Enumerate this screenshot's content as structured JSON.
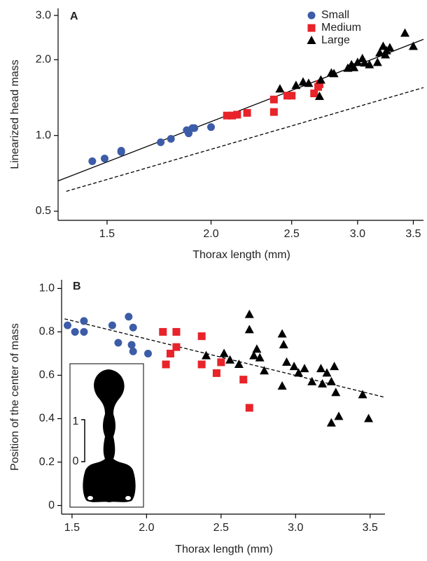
{
  "chart_data": [
    {
      "type": "scatter",
      "panel": "A",
      "xlabel": "Thorax length (mm)",
      "ylabel": "Linearized head mass",
      "xscale": "log",
      "yscale": "log",
      "xlim": [
        1.31,
        3.6
      ],
      "ylim": [
        0.46,
        3.2
      ],
      "xticks": [
        1.5,
        {
          "value": 2,
          "label": "2.0"
        },
        2.5,
        {
          "value": 3,
          "label": "3.0"
        },
        3.5
      ],
      "yticks": [
        0.5,
        {
          "value": 1,
          "label": "1.0"
        },
        {
          "value": 2,
          "label": "2.0"
        },
        {
          "value": 3,
          "label": "3.0"
        }
      ],
      "legend": "upper right",
      "series": [
        {
          "name": "Small",
          "color": "#3d5ca8",
          "marker": "circle",
          "x": [
            1.44,
            1.49,
            1.56,
            1.56,
            1.74,
            1.79,
            1.87,
            1.88,
            1.9,
            1.91,
            2.0
          ],
          "values": [
            0.79,
            0.81,
            0.86,
            0.87,
            0.94,
            0.97,
            1.05,
            1.02,
            1.07,
            1.07,
            1.08
          ]
        },
        {
          "name": "Medium",
          "color": "#e8232a",
          "marker": "square",
          "x": [
            2.09,
            2.12,
            2.15,
            2.21,
            2.38,
            2.38,
            2.47,
            2.5,
            2.66,
            2.69,
            2.7
          ],
          "values": [
            1.2,
            1.2,
            1.21,
            1.23,
            1.39,
            1.24,
            1.44,
            1.44,
            1.47,
            1.56,
            1.6
          ]
        },
        {
          "name": "Large",
          "color": "#000000",
          "marker": "triangle",
          "x": [
            2.42,
            2.53,
            2.58,
            2.62,
            2.7,
            2.71,
            2.79,
            2.81,
            2.92,
            2.95,
            2.97,
            3.0,
            3.04,
            3.06,
            3.1,
            3.17,
            3.19,
            3.22,
            3.24,
            3.25,
            3.28,
            3.42,
            3.5
          ],
          "values": [
            1.53,
            1.58,
            1.63,
            1.61,
            1.43,
            1.66,
            1.77,
            1.76,
            1.85,
            1.91,
            1.86,
            1.95,
            2.02,
            1.94,
            1.91,
            1.95,
            2.13,
            2.26,
            2.09,
            2.17,
            2.23,
            2.55,
            2.26
          ]
        }
      ],
      "lines": [
        {
          "color": "#000000",
          "dashed": false,
          "x": [
            1.31,
            3.6
          ],
          "values": [
            0.66,
            2.41
          ]
        },
        {
          "color": "#000000",
          "dashed": true,
          "x": [
            1.34,
            3.6
          ],
          "values": [
            0.6,
            1.55
          ]
        }
      ]
    },
    {
      "type": "scatter",
      "panel": "B",
      "xlabel": "Thorax length (mm)",
      "ylabel": "Position of the center of mass",
      "xscale": "linear",
      "yscale": "linear",
      "xlim": [
        1.43,
        3.6
      ],
      "ylim": [
        -0.04,
        1.04
      ],
      "xticks": [
        1.5,
        {
          "value": 2,
          "label": "2.0"
        },
        2.5,
        {
          "value": 3,
          "label": "3.0"
        },
        3.5
      ],
      "yticks": [
        0,
        0.2,
        0.4,
        0.6,
        0.8,
        {
          "value": 1,
          "label": "1.0"
        }
      ],
      "series": [
        {
          "color": "#3d5ca8",
          "marker": "circle",
          "x": [
            1.47,
            1.52,
            1.58,
            1.58,
            1.77,
            1.81,
            1.88,
            1.91,
            1.9,
            1.91,
            2.01
          ],
          "values": [
            0.83,
            0.8,
            0.85,
            0.8,
            0.83,
            0.75,
            0.87,
            0.82,
            0.74,
            0.71,
            0.7
          ]
        },
        {
          "color": "#e8232a",
          "marker": "square",
          "x": [
            2.11,
            2.13,
            2.16,
            2.2,
            2.2,
            2.37,
            2.37,
            2.47,
            2.5,
            2.65,
            2.69
          ],
          "values": [
            0.8,
            0.65,
            0.7,
            0.8,
            0.73,
            0.78,
            0.65,
            0.61,
            0.66,
            0.58,
            0.45
          ]
        },
        {
          "color": "#000000",
          "marker": "triangle",
          "x": [
            2.4,
            2.52,
            2.56,
            2.62,
            2.69,
            2.69,
            2.72,
            2.74,
            2.76,
            2.79,
            2.91,
            2.91,
            2.92,
            2.94,
            2.99,
            3.02,
            3.06,
            3.11,
            3.17,
            3.18,
            3.21,
            3.24,
            3.24,
            3.26,
            3.27,
            3.29,
            3.45,
            3.49
          ],
          "values": [
            0.69,
            0.7,
            0.67,
            0.65,
            0.88,
            0.81,
            0.69,
            0.72,
            0.68,
            0.62,
            0.79,
            0.55,
            0.74,
            0.66,
            0.64,
            0.61,
            0.63,
            0.57,
            0.63,
            0.56,
            0.61,
            0.38,
            0.57,
            0.64,
            0.52,
            0.41,
            0.51,
            0.4
          ]
        }
      ],
      "lines": [
        {
          "color": "#000000",
          "dashed": true,
          "x": [
            1.45,
            3.59
          ],
          "values": [
            0.86,
            0.5
          ]
        }
      ],
      "inset": {
        "labels": [
          "1",
          "0"
        ]
      }
    }
  ]
}
